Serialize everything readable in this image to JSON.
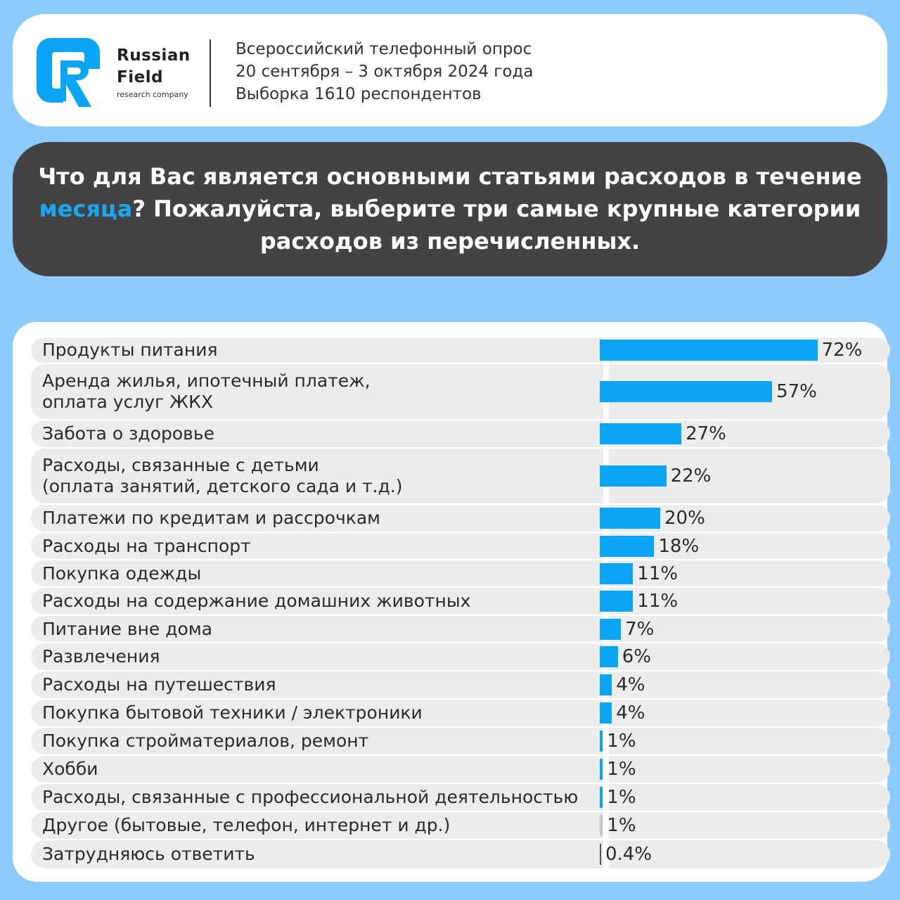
{
  "brand": {
    "line1": "Russian",
    "line2": "Field",
    "line3": "research company",
    "color": "#0aa5f5"
  },
  "survey": {
    "line1": "Всероссийский телефонный опрос",
    "line2": "20 сентября – 3 октября 2024 года",
    "line3": "Выборка 1610 респондентов"
  },
  "question": {
    "part1": "Что для Вас является основными статьями расходов в течение ",
    "highlight": "месяца",
    "part2": "? Пожалуйста, выберите три самые крупные категории расходов из перечисленных.",
    "highlight_color": "#1aa7f2"
  },
  "chart_data": {
    "type": "bar",
    "orientation": "horizontal",
    "unit": "%",
    "categories": [
      "Продукты питания",
      "Аренда жилья, ипотечный платеж, оплата услуг ЖКХ",
      "Забота о здоровье",
      "Расходы, связанные с детьми (оплата занятий, детского сада и т.д.)",
      "Платежи по кредитам и рассрочкам",
      "Расходы на транспорт",
      "Покупка одежды",
      "Расходы на содержание домашних животных",
      "Питание вне дома",
      "Развлечения",
      "Расходы на путешествия",
      "Покупка бытовой техники / электроники",
      "Покупка стройматериалов, ремонт",
      "Хобби",
      "Расходы, связанные с профессиональной деятельностью",
      "Другое (бытовые, телефон, интернет и др.)",
      "Затрудняюсь ответить"
    ],
    "label_lines": [
      [
        "Продукты питания"
      ],
      [
        "Аренда жилья, ипотечный платеж,",
        "оплата услуг ЖКХ"
      ],
      [
        "Забота о здоровье"
      ],
      [
        "Расходы, связанные с детьми",
        "(оплата занятий, детского сада и т.д.)"
      ],
      [
        "Платежи по кредитам и рассрочкам"
      ],
      [
        "Расходы на транспорт"
      ],
      [
        "Покупка одежды"
      ],
      [
        "Расходы на содержание домашних животных"
      ],
      [
        "Питание вне дома"
      ],
      [
        "Развлечения"
      ],
      [
        "Расходы на путешествия"
      ],
      [
        "Покупка бытовой техники / электроники"
      ],
      [
        "Покупка стройматериалов, ремонт"
      ],
      [
        "Хобби"
      ],
      [
        "Расходы, связанные с профессиональной деятельностью"
      ],
      [
        "Другое (бытовые, телефон, интернет и др.)"
      ],
      [
        "Затрудняюсь ответить"
      ]
    ],
    "values": [
      72,
      57,
      27,
      22,
      20,
      18,
      11,
      11,
      7,
      6,
      4,
      4,
      1,
      1,
      1,
      1,
      0.4
    ],
    "value_labels": [
      "72%",
      "57%",
      "27%",
      "22%",
      "20%",
      "18%",
      "11%",
      "11%",
      "7%",
      "6%",
      "4%",
      "4%",
      "1%",
      "1%",
      "1%",
      "1%",
      "0.4%"
    ],
    "bar_color": "#0aa5f5",
    "other_color": "#c8c8c8",
    "dk_color": "#555555"
  }
}
